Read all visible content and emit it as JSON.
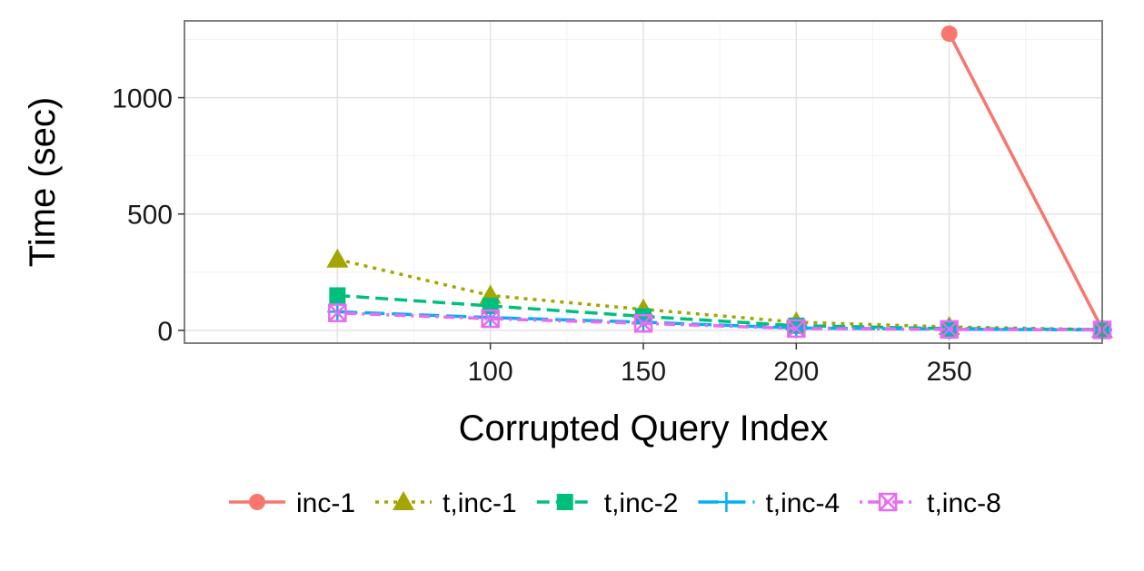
{
  "chart_data": {
    "type": "line",
    "title": "",
    "xlabel": "Corrupted Query Index",
    "ylabel": "Time (sec)",
    "xlim": [
      0,
      300
    ],
    "ylim": [
      -55,
      1330
    ],
    "xticks": [
      100,
      150,
      200,
      250
    ],
    "yticks": [
      0,
      500,
      1000
    ],
    "grid": true,
    "legend_position": "bottom",
    "series": [
      {
        "name": "inc-1",
        "color": "#F8766D",
        "marker": "circle",
        "dash": "solid",
        "x": [
          250,
          300
        ],
        "y": [
          1275,
          5
        ]
      },
      {
        "name": "t,inc-1",
        "color": "#A3A500",
        "marker": "triangle",
        "dash": "dotted",
        "x": [
          50,
          100,
          150,
          200,
          250,
          300
        ],
        "y": [
          305,
          150,
          90,
          35,
          15,
          3
        ]
      },
      {
        "name": "t,inc-2",
        "color": "#00BF7D",
        "marker": "square",
        "dash": "dashed",
        "x": [
          50,
          100,
          150,
          200,
          250,
          300
        ],
        "y": [
          150,
          105,
          60,
          20,
          8,
          3
        ]
      },
      {
        "name": "t,inc-4",
        "color": "#00B0F6",
        "marker": "plus",
        "dash": "longdash",
        "x": [
          50,
          100,
          150,
          200,
          250,
          300
        ],
        "y": [
          80,
          55,
          35,
          10,
          5,
          2
        ]
      },
      {
        "name": "t,inc-8",
        "color": "#E76BF3",
        "marker": "boxcross",
        "dash": "dotdash",
        "x": [
          50,
          100,
          150,
          200,
          250,
          300
        ],
        "y": [
          75,
          50,
          30,
          8,
          4,
          2
        ]
      }
    ]
  }
}
